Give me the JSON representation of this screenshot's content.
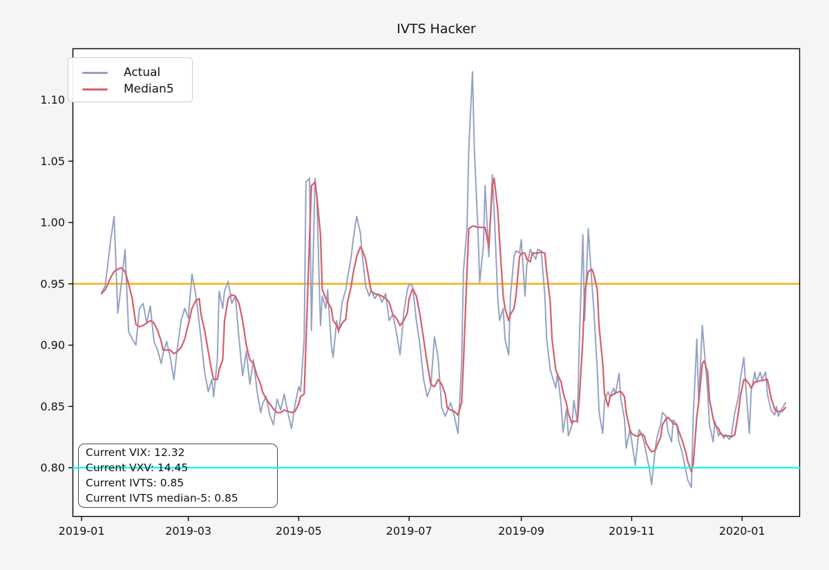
{
  "title": "IVTS Hacker",
  "legend": {
    "items": [
      {
        "label": "Actual",
        "color": "#94a2c3"
      },
      {
        "label": "Median5",
        "color": "#d7606e"
      }
    ]
  },
  "annotation": {
    "lines": [
      "Current VIX: 12.32",
      "Current VXV: 14.45",
      "Current IVTS: 0.85",
      "Current IVTS median-5: 0.85"
    ]
  },
  "chart_data": {
    "type": "line",
    "title": "IVTS Hacker",
    "xlabel": "",
    "ylabel": "",
    "x_unit": "days since 2019-01-01",
    "xlim": [
      -5,
      397
    ],
    "ylim": [
      0.76,
      1.142
    ],
    "grid": false,
    "legend_position": "upper left",
    "x_ticks": [
      {
        "day": 0,
        "label": "2019-01"
      },
      {
        "day": 59,
        "label": "2019-03"
      },
      {
        "day": 120,
        "label": "2019-05"
      },
      {
        "day": 181,
        "label": "2019-07"
      },
      {
        "day": 243,
        "label": "2019-09"
      },
      {
        "day": 304,
        "label": "2019-11"
      },
      {
        "day": 365,
        "label": "2020-01"
      }
    ],
    "y_ticks": [
      {
        "v": 0.8,
        "label": "0.80"
      },
      {
        "v": 0.85,
        "label": "0.85"
      },
      {
        "v": 0.9,
        "label": "0.90"
      },
      {
        "v": 0.95,
        "label": "0.95"
      },
      {
        "v": 1.0,
        "label": "1.00"
      },
      {
        "v": 1.05,
        "label": "1.05"
      },
      {
        "v": 1.1,
        "label": "1.10"
      }
    ],
    "hlines": [
      {
        "y": 0.95,
        "color": "#ffa500",
        "name": "upper-threshold-line"
      },
      {
        "y": 0.8,
        "color": "#00ffff",
        "name": "lower-threshold-line"
      }
    ],
    "series": [
      {
        "name": "Actual",
        "color": "#94a2c3",
        "width": 2.0,
        "column": 1
      },
      {
        "name": "Median5",
        "color": "#d7606e",
        "width": 2.3,
        "column": 2
      }
    ],
    "points": [
      [
        11,
        0.943,
        0.942
      ],
      [
        13,
        0.948,
        0.945
      ],
      [
        14,
        0.96,
        0.948
      ],
      [
        16,
        0.985,
        0.955
      ],
      [
        18,
        1.005,
        0.96
      ],
      [
        20,
        0.926,
        0.962
      ],
      [
        22,
        0.95,
        0.963
      ],
      [
        24,
        0.978,
        0.96
      ],
      [
        26,
        0.911,
        0.95
      ],
      [
        28,
        0.905,
        0.938
      ],
      [
        30,
        0.9,
        0.917
      ],
      [
        32,
        0.93,
        0.915
      ],
      [
        34,
        0.934,
        0.916
      ],
      [
        36,
        0.918,
        0.918
      ],
      [
        38,
        0.932,
        0.92
      ],
      [
        40,
        0.903,
        0.918
      ],
      [
        42,
        0.896,
        0.912
      ],
      [
        44,
        0.885,
        0.903
      ],
      [
        45,
        0.893,
        0.896
      ],
      [
        47,
        0.903,
        0.896
      ],
      [
        49,
        0.89,
        0.896
      ],
      [
        51,
        0.872,
        0.893
      ],
      [
        53,
        0.898,
        0.895
      ],
      [
        55,
        0.92,
        0.898
      ],
      [
        57,
        0.93,
        0.905
      ],
      [
        59,
        0.922,
        0.917
      ],
      [
        61,
        0.958,
        0.93
      ],
      [
        63,
        0.942,
        0.936
      ],
      [
        65,
        0.918,
        0.938
      ],
      [
        66,
        0.905,
        0.925
      ],
      [
        68,
        0.878,
        0.912
      ],
      [
        70,
        0.862,
        0.895
      ],
      [
        72,
        0.872,
        0.878
      ],
      [
        73,
        0.858,
        0.872
      ],
      [
        75,
        0.888,
        0.872
      ],
      [
        76,
        0.944,
        0.88
      ],
      [
        78,
        0.93,
        0.888
      ],
      [
        79,
        0.944,
        0.92
      ],
      [
        81,
        0.952,
        0.938
      ],
      [
        83,
        0.934,
        0.941
      ],
      [
        85,
        0.94,
        0.94
      ],
      [
        87,
        0.905,
        0.934
      ],
      [
        89,
        0.875,
        0.92
      ],
      [
        91,
        0.895,
        0.9
      ],
      [
        93,
        0.868,
        0.888
      ],
      [
        95,
        0.888,
        0.885
      ],
      [
        97,
        0.862,
        0.875
      ],
      [
        99,
        0.845,
        0.868
      ],
      [
        100,
        0.852,
        0.862
      ],
      [
        102,
        0.858,
        0.856
      ],
      [
        104,
        0.843,
        0.852
      ],
      [
        106,
        0.835,
        0.848
      ],
      [
        108,
        0.856,
        0.845
      ],
      [
        110,
        0.847,
        0.845
      ],
      [
        112,
        0.86,
        0.847
      ],
      [
        114,
        0.845,
        0.846
      ],
      [
        116,
        0.832,
        0.845
      ],
      [
        118,
        0.852,
        0.846
      ],
      [
        120,
        0.866,
        0.852
      ],
      [
        121,
        0.862,
        0.858
      ],
      [
        123,
        0.905,
        0.86
      ],
      [
        124,
        1.033,
        0.902
      ],
      [
        126,
        1.036,
        0.988
      ],
      [
        127,
        0.912,
        1.03
      ],
      [
        129,
        1.036,
        1.033
      ],
      [
        130,
        1.02,
        1.022
      ],
      [
        132,
        0.916,
        0.99
      ],
      [
        133,
        0.94,
        0.945
      ],
      [
        135,
        0.93,
        0.938
      ],
      [
        136,
        0.945,
        0.935
      ],
      [
        138,
        0.9,
        0.93
      ],
      [
        139,
        0.89,
        0.92
      ],
      [
        141,
        0.92,
        0.916
      ],
      [
        142,
        0.91,
        0.912
      ],
      [
        144,
        0.935,
        0.918
      ],
      [
        146,
        0.945,
        0.921
      ],
      [
        147,
        0.955,
        0.935
      ],
      [
        149,
        0.972,
        0.948
      ],
      [
        150,
        0.985,
        0.958
      ],
      [
        152,
        1.005,
        0.972
      ],
      [
        154,
        0.992,
        0.98
      ],
      [
        155,
        0.975,
        0.978
      ],
      [
        157,
        0.948,
        0.97
      ],
      [
        159,
        0.94,
        0.952
      ],
      [
        160,
        0.945,
        0.944
      ],
      [
        162,
        0.938,
        0.942
      ],
      [
        164,
        0.942,
        0.941
      ],
      [
        166,
        0.935,
        0.94
      ],
      [
        168,
        0.942,
        0.938
      ],
      [
        170,
        0.92,
        0.935
      ],
      [
        172,
        0.925,
        0.925
      ],
      [
        174,
        0.91,
        0.922
      ],
      [
        176,
        0.892,
        0.916
      ],
      [
        178,
        0.926,
        0.92
      ],
      [
        180,
        0.945,
        0.926
      ],
      [
        181,
        0.95,
        0.938
      ],
      [
        183,
        0.948,
        0.946
      ],
      [
        185,
        0.92,
        0.94
      ],
      [
        187,
        0.9,
        0.925
      ],
      [
        189,
        0.872,
        0.905
      ],
      [
        191,
        0.858,
        0.885
      ],
      [
        193,
        0.866,
        0.868
      ],
      [
        195,
        0.907,
        0.866
      ],
      [
        197,
        0.89,
        0.872
      ],
      [
        199,
        0.849,
        0.868
      ],
      [
        201,
        0.842,
        0.86
      ],
      [
        202,
        0.846,
        0.849
      ],
      [
        204,
        0.853,
        0.847
      ],
      [
        206,
        0.842,
        0.846
      ],
      [
        208,
        0.828,
        0.843
      ],
      [
        210,
        0.885,
        0.853
      ],
      [
        211,
        0.96,
        0.885
      ],
      [
        213,
        0.995,
        0.96
      ],
      [
        214,
        1.06,
        0.995
      ],
      [
        216,
        1.123,
        0.997
      ],
      [
        217,
        1.062,
        0.997
      ],
      [
        219,
        0.996,
        0.996
      ],
      [
        220,
        0.951,
        0.996
      ],
      [
        222,
        0.98,
        0.996
      ],
      [
        223,
        1.03,
        0.996
      ],
      [
        225,
        0.972,
        0.98
      ],
      [
        227,
        1.039,
        1.03
      ],
      [
        228,
        1.01,
        1.036
      ],
      [
        230,
        0.938,
        1.01
      ],
      [
        231,
        0.92,
        0.985
      ],
      [
        233,
        0.93,
        0.94
      ],
      [
        234,
        0.905,
        0.93
      ],
      [
        236,
        0.892,
        0.92
      ],
      [
        237,
        0.94,
        0.925
      ],
      [
        239,
        0.972,
        0.93
      ],
      [
        240,
        0.977,
        0.94
      ],
      [
        242,
        0.975,
        0.972
      ],
      [
        243,
        0.986,
        0.975
      ],
      [
        245,
        0.94,
        0.975
      ],
      [
        246,
        0.965,
        0.97
      ],
      [
        248,
        0.978,
        0.968
      ],
      [
        249,
        0.975,
        0.975
      ],
      [
        251,
        0.97,
        0.975
      ],
      [
        252,
        0.978,
        0.975
      ],
      [
        254,
        0.977,
        0.976
      ],
      [
        256,
        0.94,
        0.975
      ],
      [
        257,
        0.905,
        0.96
      ],
      [
        259,
        0.88,
        0.935
      ],
      [
        260,
        0.875,
        0.905
      ],
      [
        262,
        0.865,
        0.88
      ],
      [
        263,
        0.877,
        0.876
      ],
      [
        265,
        0.852,
        0.87
      ],
      [
        266,
        0.829,
        0.862
      ],
      [
        268,
        0.848,
        0.852
      ],
      [
        269,
        0.826,
        0.844
      ],
      [
        271,
        0.835,
        0.836
      ],
      [
        272,
        0.855,
        0.838
      ],
      [
        274,
        0.837,
        0.838
      ],
      [
        275,
        0.9,
        0.855
      ],
      [
        277,
        0.99,
        0.905
      ],
      [
        278,
        0.92,
        0.942
      ],
      [
        280,
        0.995,
        0.96
      ],
      [
        282,
        0.95,
        0.962
      ],
      [
        283,
        0.93,
        0.958
      ],
      [
        285,
        0.88,
        0.945
      ],
      [
        286,
        0.845,
        0.915
      ],
      [
        288,
        0.828,
        0.885
      ],
      [
        289,
        0.855,
        0.86
      ],
      [
        291,
        0.862,
        0.85
      ],
      [
        292,
        0.858,
        0.858
      ],
      [
        294,
        0.865,
        0.86
      ],
      [
        295,
        0.86,
        0.861
      ],
      [
        297,
        0.877,
        0.862
      ],
      [
        298,
        0.856,
        0.862
      ],
      [
        300,
        0.84,
        0.858
      ],
      [
        301,
        0.816,
        0.845
      ],
      [
        303,
        0.831,
        0.831
      ],
      [
        304,
        0.822,
        0.828
      ],
      [
        306,
        0.802,
        0.826
      ],
      [
        308,
        0.831,
        0.826
      ],
      [
        309,
        0.829,
        0.828
      ],
      [
        311,
        0.82,
        0.826
      ],
      [
        312,
        0.812,
        0.82
      ],
      [
        314,
        0.797,
        0.815
      ],
      [
        315,
        0.786,
        0.813
      ],
      [
        317,
        0.815,
        0.814
      ],
      [
        318,
        0.825,
        0.818
      ],
      [
        320,
        0.835,
        0.825
      ],
      [
        321,
        0.845,
        0.835
      ],
      [
        323,
        0.842,
        0.84
      ],
      [
        324,
        0.83,
        0.841
      ],
      [
        326,
        0.821,
        0.838
      ],
      [
        327,
        0.839,
        0.836
      ],
      [
        329,
        0.835,
        0.835
      ],
      [
        330,
        0.822,
        0.83
      ],
      [
        332,
        0.812,
        0.822
      ],
      [
        334,
        0.797,
        0.812
      ],
      [
        335,
        0.79,
        0.805
      ],
      [
        337,
        0.784,
        0.797
      ],
      [
        338,
        0.842,
        0.803
      ],
      [
        340,
        0.905,
        0.842
      ],
      [
        341,
        0.853,
        0.853
      ],
      [
        343,
        0.916,
        0.885
      ],
      [
        344,
        0.898,
        0.887
      ],
      [
        346,
        0.862,
        0.878
      ],
      [
        347,
        0.835,
        0.856
      ],
      [
        349,
        0.821,
        0.84
      ],
      [
        350,
        0.838,
        0.835
      ],
      [
        352,
        0.826,
        0.832
      ],
      [
        353,
        0.829,
        0.828
      ],
      [
        355,
        0.824,
        0.826
      ],
      [
        356,
        0.827,
        0.826
      ],
      [
        358,
        0.823,
        0.826
      ],
      [
        359,
        0.826,
        0.825
      ],
      [
        361,
        0.845,
        0.827
      ],
      [
        363,
        0.858,
        0.845
      ],
      [
        364,
        0.872,
        0.858
      ],
      [
        366,
        0.89,
        0.872
      ],
      [
        367,
        0.868,
        0.872
      ],
      [
        369,
        0.828,
        0.868
      ],
      [
        370,
        0.862,
        0.865
      ],
      [
        372,
        0.878,
        0.87
      ],
      [
        373,
        0.87,
        0.87
      ],
      [
        375,
        0.878,
        0.871
      ],
      [
        376,
        0.872,
        0.871
      ],
      [
        378,
        0.878,
        0.872
      ],
      [
        379,
        0.86,
        0.872
      ],
      [
        381,
        0.847,
        0.857
      ],
      [
        383,
        0.843,
        0.848
      ],
      [
        384,
        0.85,
        0.846
      ],
      [
        385,
        0.842,
        0.846
      ],
      [
        387,
        0.848,
        0.846
      ],
      [
        389,
        0.853,
        0.849
      ]
    ]
  },
  "colors": {
    "figure_background": "#f5f5f5",
    "axes_background": "#ffffff",
    "spine": "#000000",
    "text": "#111111",
    "actual_line": "#94a2c3",
    "median_line": "#d7606e",
    "upper_threshold": "#ffa500",
    "lower_threshold": "#00ffff"
  }
}
